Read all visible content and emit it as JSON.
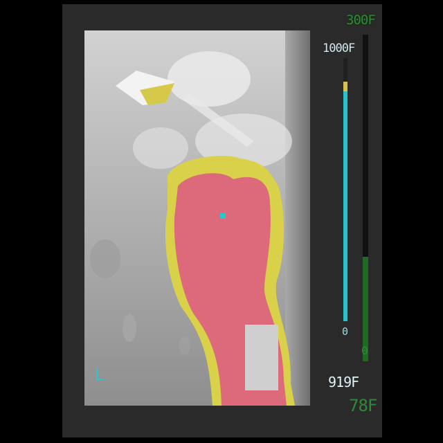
{
  "thermal_view": {
    "colors": {
      "background_gray": "#b9b9b9",
      "hot_zone": "#dd6a7a",
      "warm_edge": "#d9d14a",
      "reticle": "#27c7cf"
    }
  },
  "outer_scale": {
    "max_label": "300F",
    "min_label": "0",
    "level_fraction": 0.32,
    "color": "#1f6b23"
  },
  "inner_scale": {
    "max_label": "1000F",
    "min_label": "0",
    "level_fraction": 0.91,
    "color": "#27c3cb"
  },
  "readouts": {
    "spot_temp": "919F",
    "ambient_temp": "78F",
    "mode_letter": "L"
  }
}
